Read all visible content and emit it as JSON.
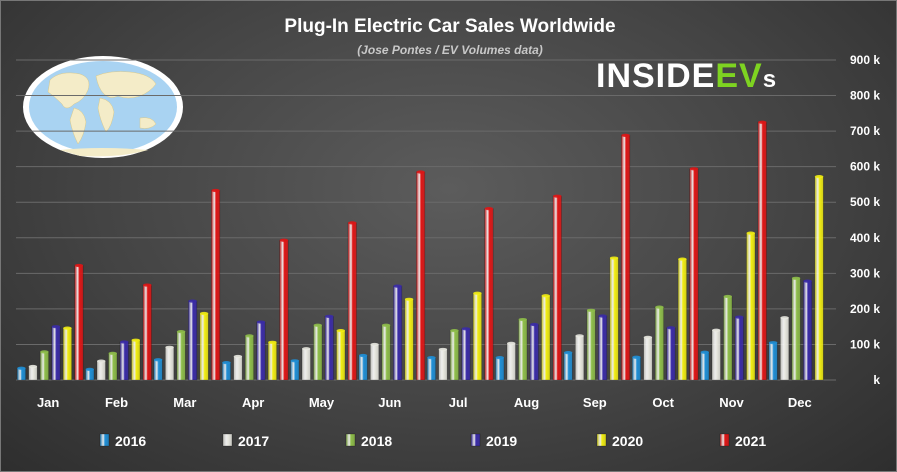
{
  "chart_data": {
    "type": "bar",
    "title": "Plug-In Electric Car Sales Worldwide",
    "subtitle": "(Jose Pontes / EV Volumes data)",
    "logo_text": "INSIDEEVs",
    "categories": [
      "Jan",
      "Feb",
      "Mar",
      "Apr",
      "May",
      "Jun",
      "Jul",
      "Aug",
      "Sep",
      "Oct",
      "Nov",
      "Dec"
    ],
    "y_ticks": [
      "k",
      "100 k",
      "200 k",
      "300 k",
      "400 k",
      "500 k",
      "600 k",
      "700 k",
      "800 k",
      "900 k"
    ],
    "ylim": [
      0,
      900
    ],
    "y_unit": "k",
    "grid": true,
    "legend_position": "bottom",
    "series": [
      {
        "name": "2016",
        "color": "#1f8fd6",
        "values": [
          33,
          30,
          57,
          49,
          54,
          69,
          63,
          63,
          77,
          64,
          78,
          105
        ]
      },
      {
        "name": "2017",
        "color": "#e8e8e0",
        "values": [
          38,
          53,
          92,
          66,
          88,
          100,
          86,
          103,
          124,
          120,
          140,
          175
        ]
      },
      {
        "name": "2018",
        "color": "#8fbf4a",
        "values": [
          79,
          75,
          136,
          124,
          154,
          154,
          139,
          170,
          196,
          205,
          235,
          286
        ]
      },
      {
        "name": "2019",
        "color": "#3a2ba8",
        "values": [
          150,
          107,
          222,
          163,
          179,
          264,
          144,
          156,
          180,
          147,
          177,
          278
        ]
      },
      {
        "name": "2020",
        "color": "#f2ee12",
        "values": [
          146,
          112,
          187,
          106,
          139,
          227,
          244,
          237,
          343,
          340,
          413,
          572
        ]
      },
      {
        "name": "2021",
        "color": "#e01515",
        "values": [
          322,
          267,
          533,
          393,
          442,
          585,
          482,
          517,
          688,
          594,
          725,
          null
        ]
      }
    ]
  }
}
